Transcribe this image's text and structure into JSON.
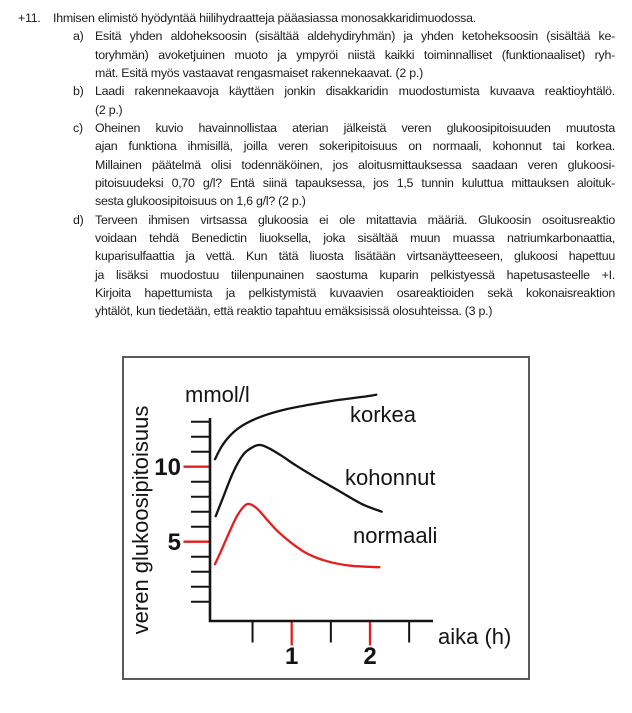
{
  "question": {
    "number": "+11.",
    "intro": "Ihmisen elimistö hyödyntää hiilihydraatteja pääasiassa monosakkaridimuodossa.",
    "parts": [
      {
        "marker": "a)",
        "lines": [
          "Esitä yhden aldoheksoosin (sisältää aldehydiryhmän) ja yhden ketoheksoosin (sisältää ke-",
          "toryhmän) avoketjuinen muoto ja ympyröi niistä kaikki toiminnalliset (funktionaaliset) ryh-",
          "mät. Esitä myös vastaavat rengasmaiset rakennekaavat. (2 p.)"
        ]
      },
      {
        "marker": "b)",
        "lines": [
          "Laadi rakennekaavoja käyttäen jonkin disakkaridin muodostumista kuvaava reaktioyhtälö.",
          "(2 p.)"
        ]
      },
      {
        "marker": "c)",
        "lines": [
          "Oheinen kuvio havainnollistaa aterian jälkeistä veren glukoosipitoisuuden muutosta",
          "ajan funktiona ihmisillä, joilla veren sokeripitoisuus on normaali, kohonnut tai korkea.",
          "Millainen päätelmä olisi todennäköinen, jos aloitusmittauksessa saadaan veren glukoosi-",
          "pitoisuudeksi 0,70 g/l? Entä siinä tapauksessa, jos 1,5 tunnin kuluttua mittauksen aloituk-",
          "sesta glukoosipitoisuus on 1,6 g/l? (2 p.)"
        ]
      },
      {
        "marker": "d)",
        "lines": [
          "Terveen ihmisen virtsassa glukoosia ei ole mitattavia määriä. Glukoosin osoitusreaktio",
          "voidaan tehdä Benedictin liuoksella, joka sisältää muun muassa natriumkarbonaattia,",
          "kuparisulfaattia ja vettä. Kun tätä liuosta lisätään virtsanäytteeseen, glukoosi hapettuu",
          "ja lisäksi muodostuu tiilenpunainen saostuma kuparin pelkistyessä hapetusasteelle +I.",
          "Kirjoita hapettumista ja pelkistymistä kuvaavien osareaktioiden sekä kokonaisreaktion",
          "yhtälöt, kun tiedetään, että reaktio tapahtuu emäksisissä olosuhteissa. (3 p.)"
        ]
      }
    ]
  },
  "figure": {
    "unit_label": "mmol/l",
    "x_axis_label": "aika (h)",
    "y_axis_label": "veren glukoosipitoisuus",
    "y_tick_label_10": "10",
    "y_tick_label_5": "5",
    "x_tick_label_1": "1",
    "x_tick_label_2": "2",
    "curve_label_high": "korkea",
    "curve_label_elevated": "kohonnut",
    "curve_label_normal": "normaali",
    "accent_red": "#e41e1e",
    "ink_black": "#141414",
    "frame_gray": "#59595b"
  },
  "chart_data": {
    "type": "line",
    "title": "",
    "xlabel": "aika (h)",
    "ylabel": "veren glukoosipitoisuus",
    "y_unit": "mmol/l",
    "xlim": [
      0,
      2.85
    ],
    "ylim": [
      0,
      13.2
    ],
    "grid": false,
    "legend": "inline-labels",
    "x_ticks": [
      0.5,
      1,
      1.5,
      2,
      2.5
    ],
    "x_tick_labeled": [
      1,
      2
    ],
    "y_ticks": [
      1,
      2,
      3,
      4,
      5,
      6,
      7,
      8,
      9,
      10,
      11,
      12,
      13
    ],
    "y_tick_labeled": [
      5,
      10
    ],
    "highlight_color": "#e41e1e",
    "note": "schematic curves; korkea rises above the drawn axis range",
    "series": [
      {
        "name": "korkea",
        "color": "#141414",
        "points": [
          [
            0.02,
            10.5
          ],
          [
            0.1,
            11.3
          ],
          [
            0.2,
            12.0
          ],
          [
            0.33,
            12.6
          ],
          [
            0.5,
            13.1
          ],
          [
            0.7,
            13.5
          ],
          [
            0.95,
            13.85
          ],
          [
            1.25,
            14.15
          ],
          [
            1.6,
            14.45
          ],
          [
            1.9,
            14.65
          ],
          [
            2.08,
            14.8
          ]
        ]
      },
      {
        "name": "kohonnut",
        "color": "#141414",
        "points": [
          [
            0.03,
            6.7
          ],
          [
            0.12,
            7.9
          ],
          [
            0.25,
            9.6
          ],
          [
            0.38,
            10.8
          ],
          [
            0.5,
            11.3
          ],
          [
            0.6,
            11.45
          ],
          [
            0.72,
            11.2
          ],
          [
            0.88,
            10.7
          ],
          [
            1.05,
            10.1
          ],
          [
            1.3,
            9.3
          ],
          [
            1.6,
            8.4
          ],
          [
            1.9,
            7.5
          ],
          [
            2.15,
            7.0
          ]
        ]
      },
      {
        "name": "normaali",
        "color": "#e41e1e",
        "points": [
          [
            0.02,
            3.5
          ],
          [
            0.1,
            4.4
          ],
          [
            0.2,
            5.6
          ],
          [
            0.3,
            6.7
          ],
          [
            0.4,
            7.4
          ],
          [
            0.47,
            7.5
          ],
          [
            0.56,
            7.2
          ],
          [
            0.68,
            6.5
          ],
          [
            0.82,
            5.7
          ],
          [
            1.0,
            4.9
          ],
          [
            1.2,
            4.2
          ],
          [
            1.45,
            3.7
          ],
          [
            1.75,
            3.4
          ],
          [
            2.12,
            3.3
          ]
        ]
      }
    ]
  }
}
